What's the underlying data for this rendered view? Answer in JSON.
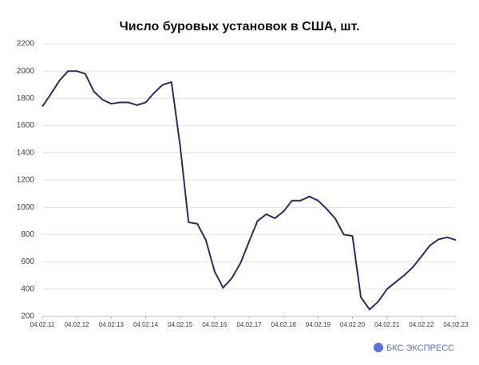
{
  "chart_data": {
    "type": "line",
    "title": "Число буровых установок в США, шт.",
    "brand": "БКС ЭКСПРЕСС",
    "x": [
      "04.02.11",
      "04.05.11",
      "04.08.11",
      "04.11.11",
      "04.02.12",
      "04.05.12",
      "04.08.12",
      "04.11.12",
      "04.02.13",
      "04.05.13",
      "04.08.13",
      "04.11.13",
      "04.02.14",
      "04.05.14",
      "04.08.14",
      "04.11.14",
      "04.02.15",
      "04.05.15",
      "04.08.15",
      "04.11.15",
      "04.02.16",
      "04.05.16",
      "04.08.16",
      "04.11.16",
      "04.02.17",
      "04.05.17",
      "04.08.17",
      "04.11.17",
      "04.02.18",
      "04.05.18",
      "04.08.18",
      "04.11.18",
      "04.02.19",
      "04.05.19",
      "04.08.19",
      "04.11.19",
      "04.02.20",
      "04.05.20",
      "04.08.20",
      "04.11.20",
      "04.02.21",
      "04.05.21",
      "04.08.21",
      "04.11.21",
      "04.02.22",
      "04.05.22",
      "04.08.22",
      "04.11.22",
      "04.02.23"
    ],
    "series": [
      {
        "name": "Число буровых установок",
        "color": "#2d2a66",
        "values": [
          1740,
          1830,
          1930,
          2000,
          2000,
          1980,
          1850,
          1790,
          1760,
          1770,
          1770,
          1750,
          1770,
          1840,
          1900,
          1920,
          1450,
          890,
          880,
          760,
          530,
          410,
          480,
          590,
          750,
          900,
          950,
          920,
          970,
          1050,
          1050,
          1080,
          1050,
          990,
          920,
          800,
          790,
          340,
          250,
          310,
          400,
          450,
          500,
          560,
          640,
          720,
          765,
          780,
          760
        ]
      }
    ],
    "xlim": [
      "04.02.11",
      "04.02.23"
    ],
    "xticks": [
      "04.02.11",
      "04.02.12",
      "04.02.13",
      "04.02.14",
      "04.02.15",
      "04.02.16",
      "04.02.17",
      "04.02.18",
      "04.02.19",
      "04.02.20",
      "04.02.21",
      "04.02.22",
      "04.02.23"
    ],
    "ylim": [
      200,
      2200
    ],
    "yticks": [
      200,
      400,
      600,
      800,
      1000,
      1200,
      1400,
      1600,
      1800,
      2000,
      2200
    ],
    "grid": true
  }
}
